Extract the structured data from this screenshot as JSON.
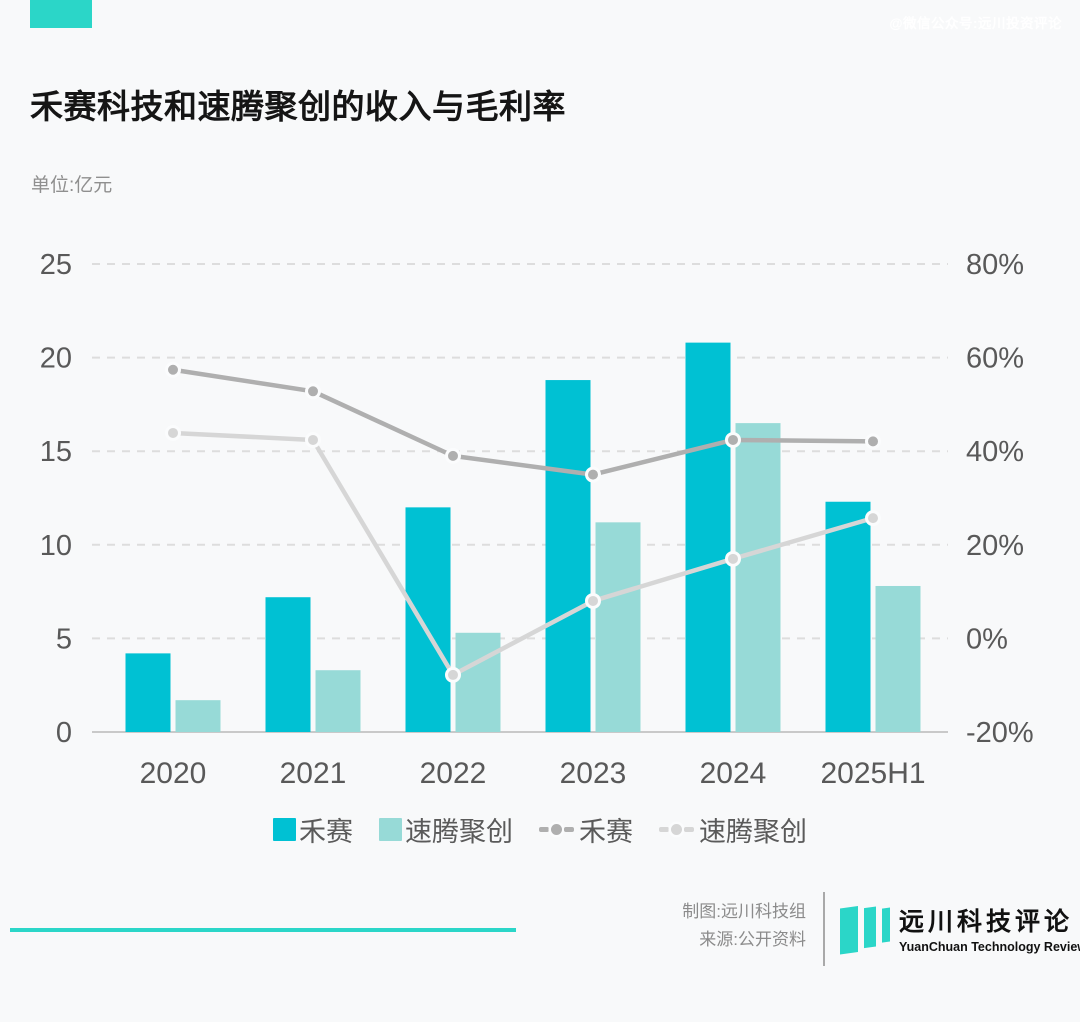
{
  "brand": {
    "accent_color": "#2BD6C8"
  },
  "watermark": "@微信公众号:远川投资评论",
  "title": "禾赛科技和速腾聚创的收入与毛利率",
  "unit_label": "单位:亿元",
  "chart_data": {
    "type": "bar+line combo",
    "categories": [
      "2020",
      "2021",
      "2022",
      "2023",
      "2024",
      "2025H1"
    ],
    "bar_series": [
      {
        "name": "禾赛",
        "color": "#00C1D3",
        "axis": "left",
        "values": [
          4.2,
          7.2,
          12.0,
          18.8,
          20.8,
          12.3
        ]
      },
      {
        "name": "速腾聚创",
        "color": "#97DAD7",
        "axis": "left",
        "values": [
          1.7,
          3.3,
          5.3,
          11.2,
          16.5,
          7.8
        ]
      }
    ],
    "line_series": [
      {
        "name": "禾赛",
        "color": "#AFAFAF",
        "axis": "right",
        "values": [
          57.4,
          52.8,
          39.0,
          35.0,
          42.4,
          42.1
        ]
      },
      {
        "name": "速腾聚创",
        "color": "#D6D6D6",
        "axis": "right",
        "values": [
          43.9,
          42.4,
          -7.8,
          8.0,
          17.0,
          25.7
        ]
      }
    ],
    "left_axis": {
      "unit": "亿元",
      "ticks": [
        0,
        5,
        10,
        15,
        20,
        25
      ],
      "range": [
        0,
        25
      ]
    },
    "right_axis": {
      "unit": "%",
      "ticks": [
        "-20%",
        "0%",
        "20%",
        "40%",
        "60%",
        "80%"
      ],
      "range": [
        -20,
        80
      ]
    },
    "grid": "dashed horizontal",
    "legend_position": "bottom"
  },
  "footer": {
    "credit_maker": "制图:远川科技组",
    "credit_source": "来源:公开资料",
    "logo_cn": "远川科技评论",
    "logo_en": "YuanChuan Technology Review"
  }
}
